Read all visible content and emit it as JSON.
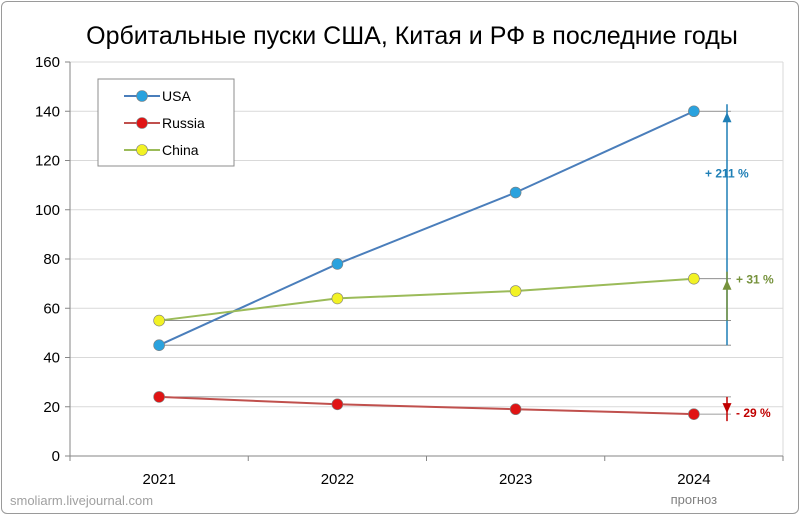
{
  "chart_data": {
    "type": "line",
    "title": "Орбитальные пуски  США, Китая и РФ в последние годы",
    "categories": [
      "2021",
      "2022",
      "2023",
      "2024"
    ],
    "category_sublabels": [
      "",
      "",
      "",
      "прогноз"
    ],
    "ylim": [
      0,
      160
    ],
    "yticks": [
      0,
      20,
      40,
      60,
      80,
      100,
      120,
      140,
      160
    ],
    "grid": true,
    "legend_position": "top-left",
    "series": [
      {
        "name": "USA",
        "values": [
          45,
          78,
          107,
          140
        ],
        "line_color": "#4a7ebb",
        "marker_color": "#2aa2de"
      },
      {
        "name": "Russia",
        "values": [
          24,
          21,
          19,
          17
        ],
        "line_color": "#c0504d",
        "marker_color": "#e01414"
      },
      {
        "name": "China",
        "values": [
          55,
          64,
          67,
          72
        ],
        "line_color": "#9bbb59",
        "marker_color": "#f2f224"
      }
    ],
    "annotations": [
      {
        "text": "+ 211 %",
        "series": "USA",
        "from": 45,
        "to": 140,
        "color": "#1f7fb6"
      },
      {
        "text": "+ 31 %",
        "series": "China",
        "from": 55,
        "to": 72,
        "color": "#76923c"
      },
      {
        "text": "- 29 %",
        "series": "Russia",
        "from": 24,
        "to": 17,
        "color": "#c00000"
      }
    ]
  },
  "credit": "smoliarm.livejournal.com"
}
